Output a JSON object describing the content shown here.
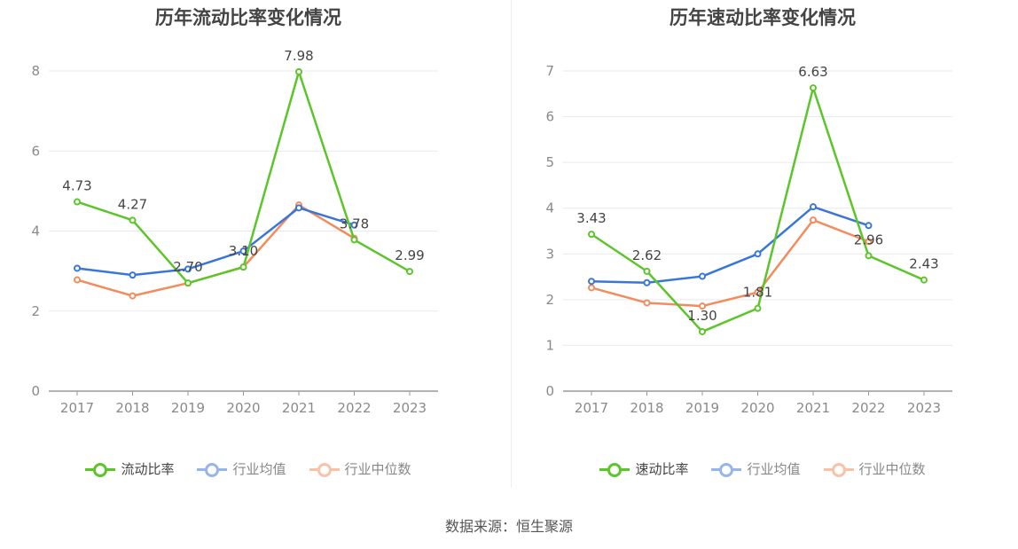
{
  "footer": {
    "source": "数据来源：恒生聚源"
  },
  "colors": {
    "primary": "#5cc52a",
    "avg": "#3a76d8",
    "median": "#f28c5c"
  },
  "chart_data": [
    {
      "type": "line",
      "title": "历年流动比率变化情况",
      "categories": [
        "2017",
        "2018",
        "2019",
        "2020",
        "2021",
        "2022",
        "2023"
      ],
      "ylim": [
        0,
        8
      ],
      "yticks": [
        0,
        2,
        4,
        6,
        8
      ],
      "grid": true,
      "legend_position": "bottom",
      "series": [
        {
          "name": "流动比率",
          "color": "#5cc52a",
          "values": [
            4.73,
            4.27,
            2.7,
            3.1,
            7.98,
            3.78,
            2.99
          ],
          "labels": [
            "4.73",
            "4.27",
            "2.70",
            "3.10",
            "7.98",
            "3.78",
            "2.99"
          ]
        },
        {
          "name": "行业均值",
          "color": "#3a76d8",
          "values": [
            3.07,
            2.9,
            3.05,
            3.5,
            4.58,
            4.15,
            null
          ]
        },
        {
          "name": "行业中位数",
          "color": "#f28c5c",
          "values": [
            2.78,
            2.38,
            2.7,
            3.1,
            4.65,
            3.82,
            null
          ]
        }
      ]
    },
    {
      "type": "line",
      "title": "历年速动比率变化情况",
      "categories": [
        "2017",
        "2018",
        "2019",
        "2020",
        "2021",
        "2022",
        "2023"
      ],
      "ylim": [
        0,
        7
      ],
      "yticks": [
        0,
        1,
        2,
        3,
        4,
        5,
        6,
        7
      ],
      "grid": true,
      "legend_position": "bottom",
      "series": [
        {
          "name": "速动比率",
          "color": "#5cc52a",
          "values": [
            3.43,
            2.62,
            1.3,
            1.81,
            6.63,
            2.96,
            2.43
          ],
          "labels": [
            "3.43",
            "2.62",
            "1.30",
            "1.81",
            "6.63",
            "2.96",
            "2.43"
          ]
        },
        {
          "name": "行业均值",
          "color": "#3a76d8",
          "values": [
            2.4,
            2.37,
            2.51,
            3.0,
            4.03,
            3.62,
            null
          ]
        },
        {
          "name": "行业中位数",
          "color": "#f28c5c",
          "values": [
            2.26,
            1.93,
            1.86,
            2.16,
            3.74,
            3.27,
            null
          ]
        }
      ]
    }
  ]
}
